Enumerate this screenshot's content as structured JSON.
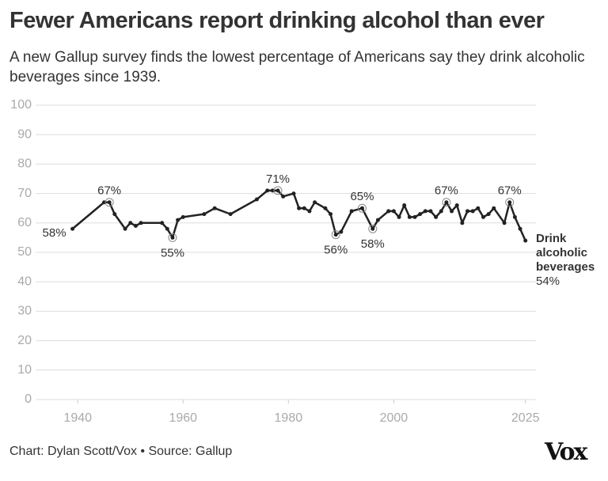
{
  "chart_data": {
    "type": "line",
    "title": "Fewer Americans report drinking alcohol than ever",
    "subtitle": "A new Gallup survey finds the lowest percentage of Americans say they drink alcoholic beverages since 1939.",
    "source": "Chart: Dylan Scott/Vox • Source: Gallup",
    "logo": "Vox",
    "x": [
      1939,
      1945,
      1946,
      1947,
      1949,
      1950,
      1951,
      1952,
      1956,
      1957,
      1958,
      1959,
      1960,
      1964,
      1966,
      1969,
      1974,
      1976,
      1977,
      1978,
      1979,
      1981,
      1982,
      1983,
      1984,
      1985,
      1987,
      1988,
      1989,
      1990,
      1992,
      1994,
      1996,
      1997,
      1999,
      2000,
      2001,
      2002,
      2003,
      2004,
      2005,
      2006,
      2007,
      2008,
      2009,
      2010,
      2011,
      2012,
      2013,
      2014,
      2015,
      2016,
      2017,
      2018,
      2019,
      2021,
      2022,
      2023,
      2024,
      2025
    ],
    "series": [
      {
        "name": "Drink alcoholic beverages",
        "color": "#222222",
        "values": [
          58,
          67,
          67,
          63,
          58,
          60,
          59,
          60,
          60,
          58,
          55,
          61,
          62,
          63,
          65,
          63,
          68,
          71,
          71,
          71,
          69,
          70,
          65,
          65,
          64,
          67,
          65,
          63,
          56,
          57,
          64,
          65,
          58,
          61,
          64,
          64,
          62,
          66,
          62,
          62,
          63,
          64,
          64,
          62,
          64,
          67,
          64,
          66,
          60,
          64,
          64,
          65,
          62,
          63,
          65,
          60,
          67,
          62,
          58,
          54
        ],
        "value_labels": [
          "58%",
          null,
          "67%",
          null,
          null,
          null,
          null,
          null,
          null,
          null,
          "55%",
          null,
          null,
          null,
          null,
          null,
          null,
          null,
          null,
          "71%",
          null,
          null,
          null,
          null,
          null,
          null,
          null,
          null,
          "56%",
          null,
          null,
          "65%",
          "58%",
          null,
          null,
          null,
          null,
          null,
          null,
          null,
          null,
          null,
          null,
          null,
          null,
          "67%",
          null,
          null,
          null,
          null,
          null,
          null,
          null,
          null,
          null,
          null,
          "67%",
          null,
          null,
          "54%"
        ]
      }
    ],
    "xlim": [
      1932,
      2027
    ],
    "ylim": [
      0,
      100
    ],
    "xticks": [
      1940,
      1960,
      1980,
      2000,
      2025
    ],
    "yticks": [
      0,
      10,
      20,
      30,
      40,
      50,
      60,
      70,
      80,
      90,
      100
    ],
    "grid": true
  }
}
